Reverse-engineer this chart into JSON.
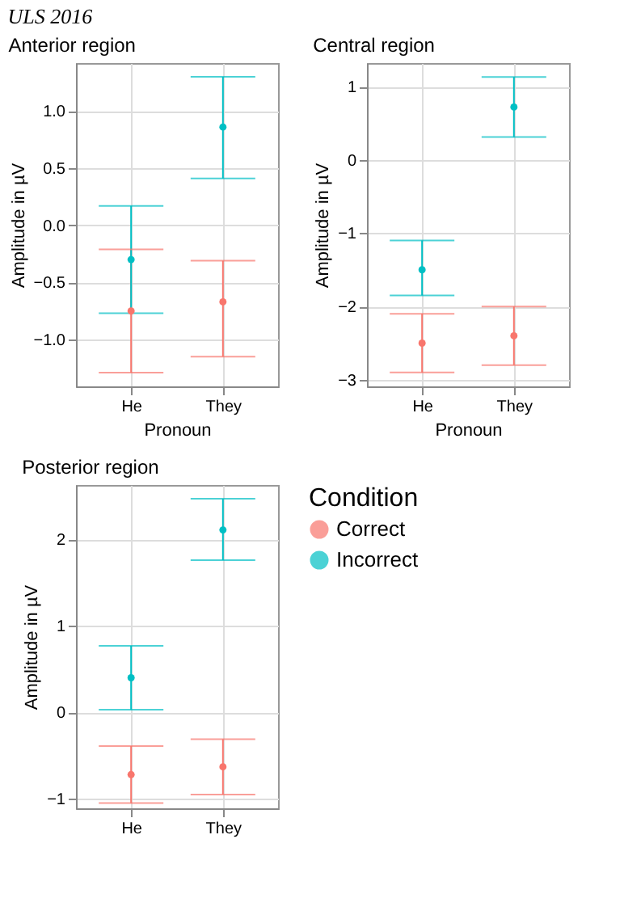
{
  "chart_data": [
    {
      "type": "scatter",
      "title": "Anterior region",
      "xlabel": "Pronoun",
      "ylabel": "Amplitude in µV",
      "annotations": [
        "ULS 2016"
      ],
      "categories": [
        "He",
        "They"
      ],
      "ylim": [
        -1.41,
        1.42
      ],
      "yticks": [
        {
          "value": -1,
          "label": "−1.0"
        },
        -0.5,
        {
          "value": 0,
          "label": "0.0"
        },
        0.5,
        {
          "value": 1,
          "label": "1.0"
        }
      ],
      "grid": true,
      "marker": "circle",
      "series": [
        {
          "color": "#f8766d",
          "values": [
            -0.75,
            -0.67
          ],
          "errors": [
            [
              -1.29,
              -0.21
            ],
            [
              -1.15,
              -0.31
            ]
          ]
        },
        {
          "color": "#00bfc4",
          "values": [
            -0.3,
            0.86
          ],
          "errors": [
            [
              -0.77,
              0.17
            ],
            [
              0.41,
              1.3
            ]
          ]
        }
      ]
    },
    {
      "type": "scatter",
      "title": "Central region",
      "xlabel": "Pronoun",
      "ylabel": "Amplitude in µV",
      "categories": [
        "He",
        "They"
      ],
      "ylim": [
        -3.09,
        1.32
      ],
      "yticks": [
        -3,
        -2,
        -1,
        0,
        1
      ],
      "grid": true,
      "marker": "circle",
      "series": [
        {
          "color": "#f8766d",
          "values": [
            -2.5,
            -2.4
          ],
          "errors": [
            [
              -2.9,
              -2.1
            ],
            [
              -2.8,
              -2.0
            ]
          ]
        },
        {
          "color": "#00bfc4",
          "values": [
            -1.5,
            0.72
          ],
          "errors": [
            [
              -1.85,
              -1.1
            ],
            [
              0.31,
              1.13
            ]
          ]
        }
      ]
    },
    {
      "type": "scatter",
      "title": "Posterior region",
      "ylabel": "Amplitude in µV",
      "legend_title": "Condition",
      "categories": [
        "He",
        "They"
      ],
      "ylim": [
        -1.11,
        2.63
      ],
      "yticks": [
        -1,
        0,
        1,
        2
      ],
      "grid": true,
      "marker": "circle",
      "legend": "right",
      "series": [
        {
          "name": "Correct",
          "color": "#f8766d",
          "values": [
            -0.72,
            -0.63
          ],
          "errors": [
            [
              -1.05,
              -0.39
            ],
            [
              -0.95,
              -0.31
            ]
          ]
        },
        {
          "name": "Incorrect",
          "color": "#00bfc4",
          "values": [
            0.4,
            2.11
          ],
          "errors": [
            [
              0.03,
              0.77
            ],
            [
              1.76,
              2.47
            ]
          ]
        }
      ]
    }
  ]
}
